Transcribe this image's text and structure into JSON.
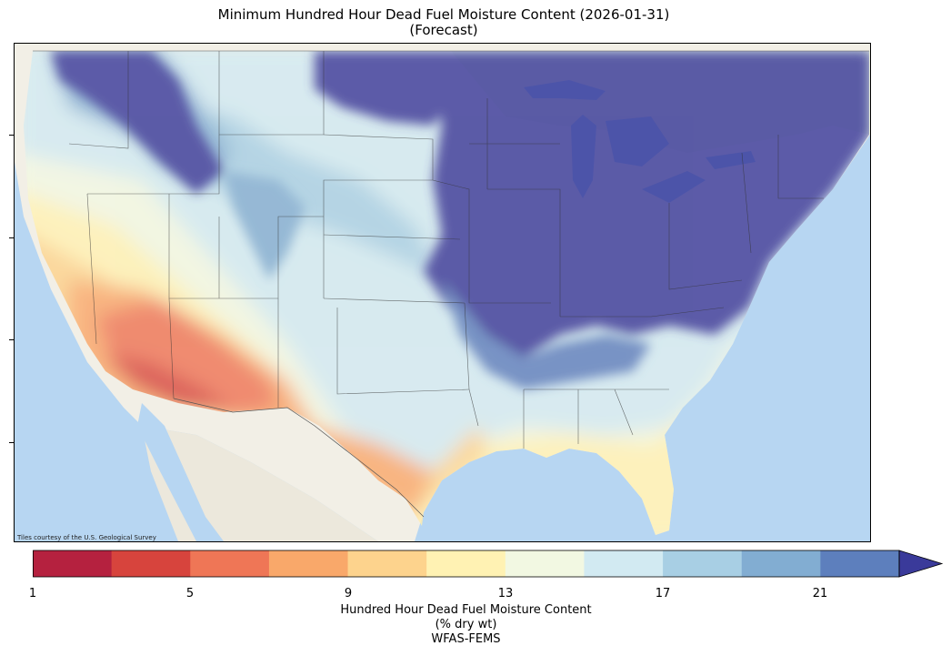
{
  "title": "Minimum Hundred Hour Dead Fuel Moisture Content (2026-01-31)",
  "subtitle": "(Forecast)",
  "attribution": "Tiles courtesy of the U.S. Geological Survey",
  "colorbar": {
    "ticks": [
      "1",
      "5",
      "9",
      "13",
      "17",
      "21"
    ],
    "label_line1": "Hundred Hour Dead Fuel Moisture Content",
    "label_line2": "(% dry wt)",
    "label_line3": "WFAS-FEMS",
    "bins": [
      {
        "from": 1,
        "to": 3,
        "color": "#b5213f"
      },
      {
        "from": 3,
        "to": 5,
        "color": "#d7443d"
      },
      {
        "from": 5,
        "to": 7,
        "color": "#ef7656"
      },
      {
        "from": 7,
        "to": 9,
        "color": "#f9a86a"
      },
      {
        "from": 9,
        "to": 11,
        "color": "#fdd38d"
      },
      {
        "from": 11,
        "to": 13,
        "color": "#fff2b3"
      },
      {
        "from": 13,
        "to": 15,
        "color": "#f2f8e2"
      },
      {
        "from": 15,
        "to": 17,
        "color": "#d2eaf2"
      },
      {
        "from": 17,
        "to": 19,
        "color": "#a8cfe4"
      },
      {
        "from": 19,
        "to": 21,
        "color": "#82add2"
      },
      {
        "from": 21,
        "to": 23,
        "color": "#5d7fbd"
      },
      {
        "from": 23,
        "to": 25,
        "color": "#3a3a9a"
      }
    ],
    "extend": "max"
  },
  "map": {
    "land_color": "#f2efe6",
    "ocean_color": "#b7d6f2",
    "lake_color": "#9cc9ef"
  }
}
